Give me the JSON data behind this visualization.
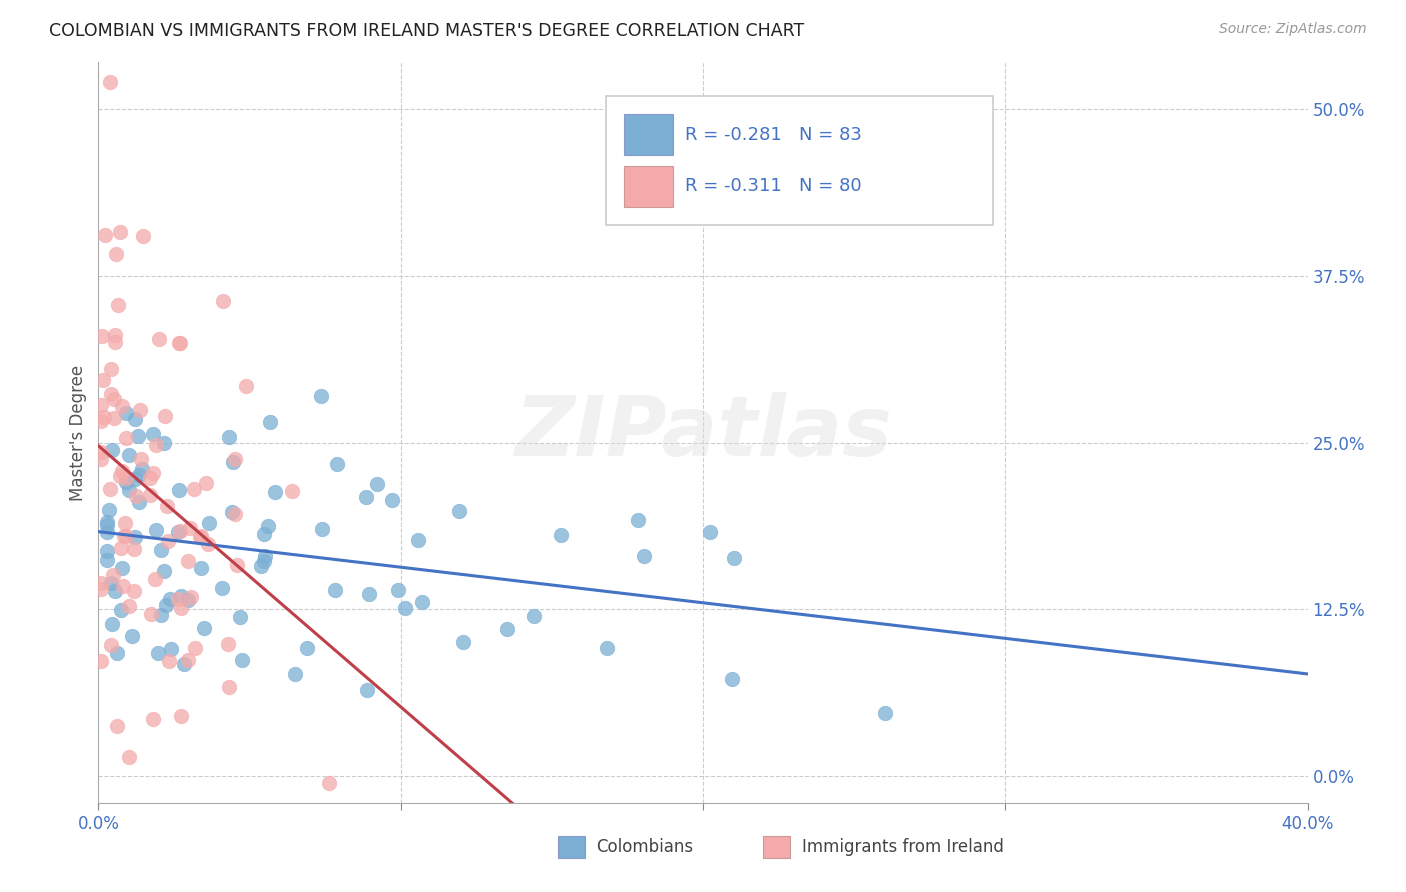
{
  "title": "COLOMBIAN VS IMMIGRANTS FROM IRELAND MASTER'S DEGREE CORRELATION CHART",
  "source": "Source: ZipAtlas.com",
  "ylabel": "Master's Degree",
  "ytick_labels": [
    "0.0%",
    "12.5%",
    "25.0%",
    "37.5%",
    "50.0%"
  ],
  "ytick_vals": [
    0.0,
    0.125,
    0.25,
    0.375,
    0.5
  ],
  "xlim": [
    0.0,
    0.4
  ],
  "ylim": [
    -0.02,
    0.535
  ],
  "R_colombians": -0.281,
  "N_colombians": 83,
  "R_ireland": -0.311,
  "N_ireland": 80,
  "color_colombians": "#7BAFD4",
  "color_ireland": "#F4AAAA",
  "line_color_colombians": "#4472C4",
  "line_color_ireland": "#C0404A",
  "legend_label_colombians": "Colombians",
  "legend_label_ireland": "Immigrants from Ireland",
  "watermark": "ZIPatlas",
  "background_color": "#FFFFFF",
  "tick_color_blue": "#4472C4"
}
